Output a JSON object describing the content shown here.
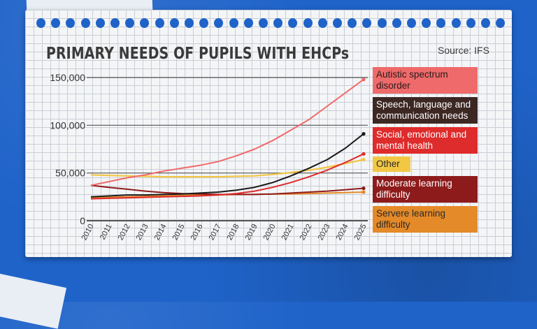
{
  "page": {
    "title": "PRIMARY NEEDS OF PUPILS WITH EHCPs",
    "source": "Source: IFS"
  },
  "colors": {
    "background": "#1f63c9",
    "paper": "#f4f5f7",
    "grid": "#c9ced6",
    "axis_line": "#555555"
  },
  "chart_data": {
    "type": "line",
    "title": "PRIMARY NEEDS OF PUPILS WITH EHCPs",
    "xlabel": "",
    "ylabel": "",
    "ylim": [
      0,
      150000
    ],
    "y_ticks": [
      0,
      50000,
      100000,
      150000
    ],
    "y_tick_labels": [
      "0",
      "50,000",
      "100,000",
      "150,000"
    ],
    "categories": [
      "2010",
      "2011",
      "2012",
      "2013",
      "2014",
      "2015",
      "2016",
      "2017",
      "2018",
      "2019",
      "2020",
      "2021",
      "2022",
      "2023",
      "2024",
      "2025"
    ],
    "legend_placement": "right",
    "grid": true,
    "series": [
      {
        "name": "Autistic spectrum disorder",
        "color": "#ef6a6a",
        "text_color": "#2a1a1a",
        "values": [
          37000,
          41000,
          45000,
          48000,
          52000,
          55000,
          58000,
          62000,
          68000,
          75000,
          84000,
          95000,
          106000,
          120000,
          134000,
          148000
        ]
      },
      {
        "name": "Speech, language and communication needs",
        "color": "#1a1a1a",
        "bg": "#3c2723",
        "text_color": "#ffffff",
        "values": [
          25000,
          26000,
          27000,
          27000,
          27500,
          28000,
          29000,
          30000,
          32000,
          35000,
          40000,
          47000,
          55000,
          64000,
          76000,
          91000
        ]
      },
      {
        "name": "Social, emotional and mental health",
        "color": "#de2b2b",
        "text_color": "#ffffff",
        "values": [
          23000,
          23500,
          24000,
          24500,
          25000,
          25500,
          26000,
          27000,
          28500,
          31000,
          35000,
          40000,
          46000,
          53000,
          61000,
          70000
        ]
      },
      {
        "name": "Other",
        "color": "#f2c744",
        "text_color": "#2a2a2a",
        "values": [
          48000,
          47500,
          47000,
          46500,
          46000,
          46000,
          46000,
          46000,
          46500,
          47000,
          48500,
          50500,
          53000,
          56000,
          60000,
          64000
        ]
      },
      {
        "name": "Moderate learning difficulty",
        "color": "#8e1b1b",
        "text_color": "#ffffff",
        "values": [
          37000,
          35000,
          33000,
          31000,
          29500,
          28500,
          28000,
          27500,
          27500,
          27500,
          28000,
          29000,
          30000,
          31000,
          32500,
          34000
        ]
      },
      {
        "name": "Servere learning difficulty",
        "color": "#e48a28",
        "text_color": "#2a2a2a",
        "values": [
          24000,
          24500,
          25000,
          25500,
          26000,
          26500,
          27000,
          27000,
          27500,
          27500,
          28000,
          28000,
          28500,
          29000,
          29500,
          30000
        ]
      }
    ]
  }
}
